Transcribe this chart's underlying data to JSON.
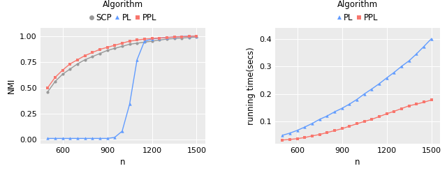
{
  "plot1": {
    "title": "Algorithm",
    "xlabel": "n",
    "ylabel": "NMI",
    "xlim": [
      450,
      1560
    ],
    "ylim": [
      -0.04,
      1.08
    ],
    "xticks": [
      600,
      900,
      1200,
      1500
    ],
    "yticks": [
      0.0,
      0.25,
      0.5,
      0.75,
      1.0
    ],
    "n_values": [
      500,
      550,
      600,
      650,
      700,
      750,
      800,
      850,
      900,
      950,
      1000,
      1050,
      1100,
      1150,
      1200,
      1250,
      1300,
      1350,
      1400,
      1450,
      1500
    ],
    "SCP": [
      0.46,
      0.56,
      0.63,
      0.68,
      0.73,
      0.77,
      0.8,
      0.83,
      0.86,
      0.88,
      0.9,
      0.92,
      0.93,
      0.94,
      0.95,
      0.96,
      0.97,
      0.975,
      0.98,
      0.985,
      0.99
    ],
    "PL": [
      0.01,
      0.01,
      0.01,
      0.01,
      0.01,
      0.01,
      0.01,
      0.01,
      0.01,
      0.02,
      0.08,
      0.34,
      0.77,
      0.95,
      0.97,
      0.98,
      0.985,
      0.99,
      0.995,
      0.998,
      1.0
    ],
    "PPL": [
      0.5,
      0.6,
      0.67,
      0.73,
      0.77,
      0.81,
      0.84,
      0.87,
      0.89,
      0.91,
      0.93,
      0.95,
      0.96,
      0.97,
      0.975,
      0.98,
      0.985,
      0.99,
      0.993,
      0.996,
      1.0
    ],
    "SCP_color": "#999999",
    "PL_color": "#619CFF",
    "PPL_color": "#F8766D",
    "bg_color": "#EBEBEB"
  },
  "plot2": {
    "title": "Algorithm",
    "xlabel": "n",
    "ylabel": "running time(secs)",
    "xlim": [
      450,
      1560
    ],
    "ylim": [
      0.02,
      0.44
    ],
    "xticks": [
      600,
      900,
      1200,
      1500
    ],
    "yticks": [
      0.1,
      0.2,
      0.3,
      0.4
    ],
    "n_values": [
      500,
      550,
      600,
      650,
      700,
      750,
      800,
      850,
      900,
      950,
      1000,
      1050,
      1100,
      1150,
      1200,
      1250,
      1300,
      1350,
      1400,
      1450,
      1500
    ],
    "PL": [
      0.05,
      0.058,
      0.068,
      0.08,
      0.093,
      0.108,
      0.12,
      0.135,
      0.148,
      0.163,
      0.18,
      0.2,
      0.218,
      0.237,
      0.258,
      0.278,
      0.3,
      0.32,
      0.345,
      0.372,
      0.4
    ],
    "PPL": [
      0.033,
      0.035,
      0.038,
      0.042,
      0.048,
      0.053,
      0.06,
      0.067,
      0.074,
      0.083,
      0.092,
      0.1,
      0.108,
      0.118,
      0.128,
      0.137,
      0.147,
      0.157,
      0.163,
      0.17,
      0.178
    ],
    "PL_color": "#619CFF",
    "PPL_color": "#F8766D",
    "bg_color": "#EBEBEB"
  },
  "fig_bg": "#FFFFFF",
  "legend_fontsize": 8.5,
  "axis_fontsize": 8.5,
  "tick_fontsize": 8
}
